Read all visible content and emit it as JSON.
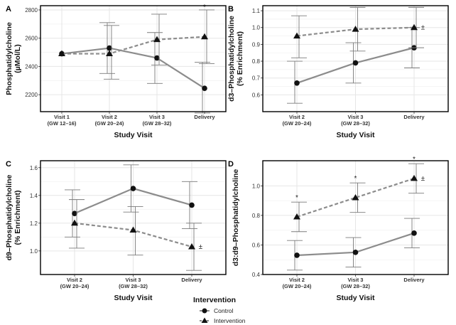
{
  "legend": {
    "title": "Intervention",
    "items": [
      {
        "name": "Control",
        "marker": "circle",
        "dash": "solid"
      },
      {
        "name": "Intervention",
        "marker": "triangle",
        "dash": "dashed"
      }
    ]
  },
  "colors": {
    "line": "#8c8c8c",
    "marker": "#111111",
    "grid": "#e6e6e6",
    "error": "#7a7a7a",
    "frame": "#000000"
  },
  "chart_data": [
    {
      "panel": "A",
      "type": "line",
      "categories": [
        "Visit 1\n(GW 12–16)",
        "Visit 2\n(GW 20–24)",
        "Visit 3\n(GW 28–32)",
        "Delivery"
      ],
      "xlabel": "Study Visit",
      "ylabel": "Phosphatidylcholine\n(µMol/L)",
      "ylim": [
        2080,
        2830
      ],
      "yticks": [
        2200,
        2400,
        2600,
        2800
      ],
      "series": [
        {
          "name": "Control",
          "values": [
            2490,
            2530,
            2460,
            2245
          ],
          "err_low": [
            null,
            2350,
            2280,
            2070
          ],
          "err_high": [
            null,
            2710,
            2640,
            2430
          ]
        },
        {
          "name": "Intervention",
          "values": [
            2490,
            2490,
            2590,
            2610
          ],
          "err_low": [
            null,
            2310,
            2410,
            2420
          ],
          "err_high": [
            null,
            2690,
            2770,
            2800
          ]
        }
      ],
      "annotations": [
        {
          "x": 3,
          "y": 2820,
          "text": "*"
        }
      ]
    },
    {
      "panel": "B",
      "type": "line",
      "categories": [
        "Visit 2\n(GW 20–24)",
        "Visit 3\n(GW 28–32)",
        "Delivery"
      ],
      "xlabel": "Study Visit",
      "ylabel": "d3–Phosphatidylcholine\n(% Enrichment)",
      "ylim": [
        0.5,
        1.13
      ],
      "yticks": [
        0.6,
        0.7,
        0.8,
        0.9,
        1.0,
        1.1
      ],
      "series": [
        {
          "name": "Control",
          "values": [
            0.67,
            0.79,
            0.88
          ],
          "err_low": [
            0.55,
            0.67,
            0.76
          ],
          "err_high": [
            0.8,
            0.91,
            1.0
          ]
        },
        {
          "name": "Intervention",
          "values": [
            0.95,
            0.99,
            1.0
          ],
          "err_low": [
            0.82,
            0.86,
            0.88
          ],
          "err_high": [
            1.07,
            1.12,
            1.12
          ]
        }
      ],
      "annotations": [
        {
          "x": 2.15,
          "y": 1.0,
          "text": "±"
        }
      ]
    },
    {
      "panel": "C",
      "type": "line",
      "categories": [
        "Visit 2\n(GW 20–24)",
        "Visit 3\n(GW 28–32)",
        "Delivery"
      ],
      "xlabel": "Study Visit",
      "ylabel": "d9–Phosphatidylcholine\n(% Enrichment)",
      "ylim": [
        0.83,
        1.65
      ],
      "yticks": [
        1.0,
        1.2,
        1.4,
        1.6
      ],
      "series": [
        {
          "name": "Control",
          "values": [
            1.27,
            1.45,
            1.33
          ],
          "err_low": [
            1.1,
            1.28,
            1.16
          ],
          "err_high": [
            1.44,
            1.62,
            1.5
          ]
        },
        {
          "name": "Intervention",
          "values": [
            1.2,
            1.15,
            1.03
          ],
          "err_low": [
            1.02,
            0.97,
            0.86
          ],
          "err_high": [
            1.37,
            1.32,
            1.2
          ]
        }
      ],
      "annotations": [
        {
          "x": 2.15,
          "y": 1.03,
          "text": "±"
        }
      ]
    },
    {
      "panel": "D",
      "type": "line",
      "categories": [
        "Visit 2\n(GW 20–24)",
        "Visit 3\n(GW 28–32)",
        "Delivery"
      ],
      "xlabel": "Study Visit",
      "ylabel": "d3:d9–Phosphatidylcholine",
      "ylim": [
        0.4,
        1.17
      ],
      "yticks": [
        0.4,
        0.6,
        0.8,
        1.0
      ],
      "series": [
        {
          "name": "Control",
          "values": [
            0.53,
            0.55,
            0.68
          ],
          "err_low": [
            0.43,
            0.45,
            0.58
          ],
          "err_high": [
            0.63,
            0.65,
            0.78
          ]
        },
        {
          "name": "Intervention",
          "values": [
            0.79,
            0.92,
            1.05
          ],
          "err_low": [
            0.69,
            0.82,
            0.95
          ],
          "err_high": [
            0.89,
            1.02,
            1.15
          ]
        }
      ],
      "annotations": [
        {
          "x": 0,
          "y": 0.92,
          "text": "*"
        },
        {
          "x": 1,
          "y": 1.05,
          "text": "*"
        },
        {
          "x": 2,
          "y": 1.18,
          "text": "*"
        },
        {
          "x": 2.15,
          "y": 1.05,
          "text": "±"
        }
      ]
    }
  ]
}
